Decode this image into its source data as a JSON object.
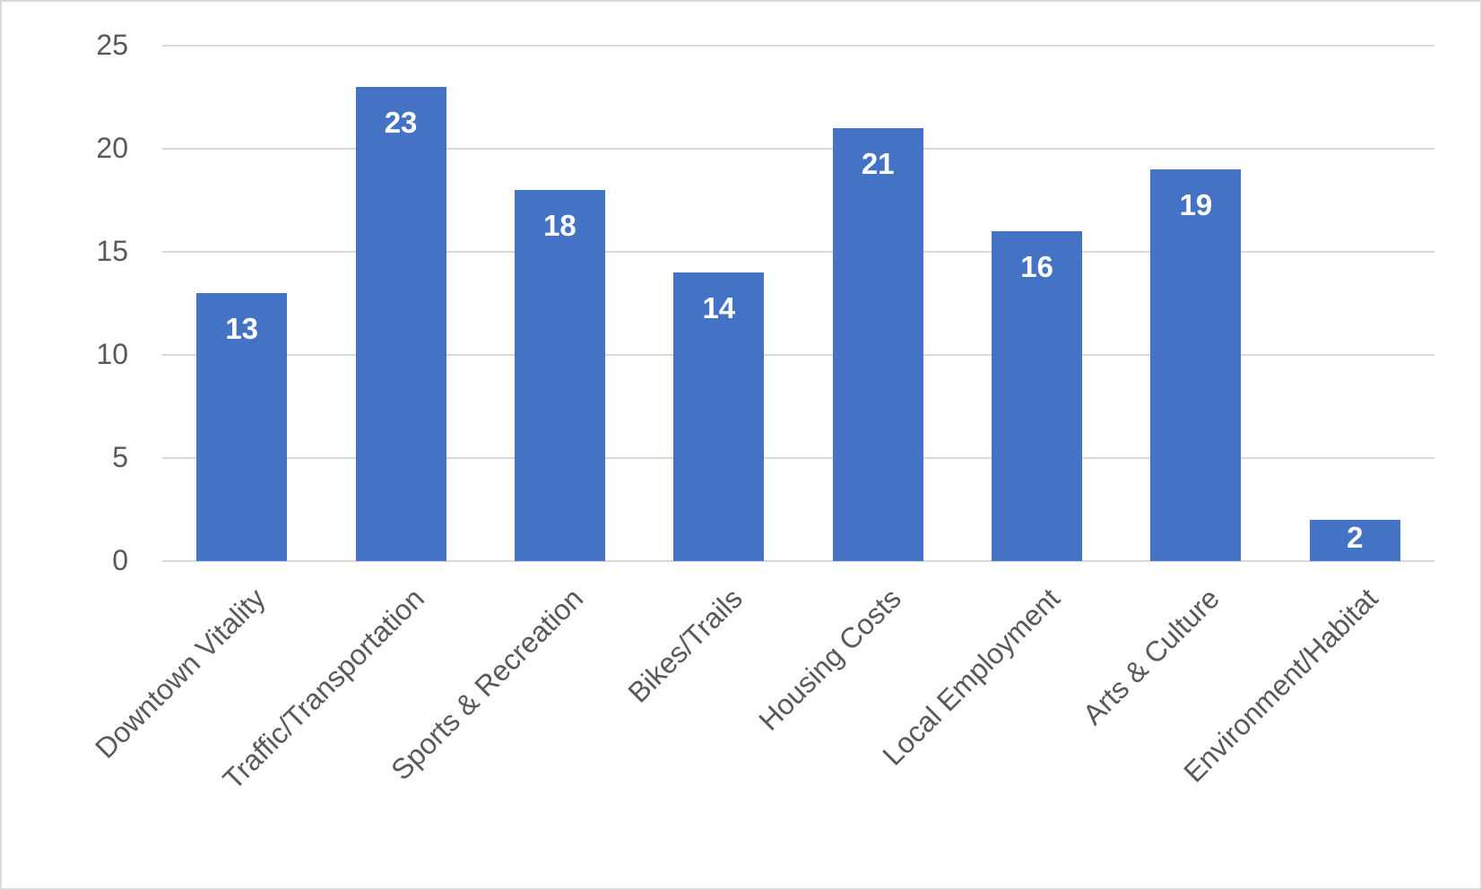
{
  "chart_data": {
    "type": "bar",
    "title": "",
    "xlabel": "",
    "ylabel": "",
    "categories": [
      "Downtown Vitality",
      "Traffic/Transportation",
      "Sports & Recreation",
      "Bikes/Trails",
      "Housing Costs",
      "Local Employment",
      "Arts & Culture",
      "Environment/Habitat"
    ],
    "values": [
      13,
      23,
      18,
      14,
      21,
      16,
      19,
      2
    ],
    "data_labels": [
      "13",
      "23",
      "18",
      "14",
      "21",
      "16",
      "19",
      "2"
    ],
    "ylim": [
      0,
      25
    ],
    "yticks": [
      "0",
      "5",
      "10",
      "15",
      "20",
      "25"
    ],
    "grid": true,
    "legend": null,
    "bar_color": "#4472C4",
    "data_label_color": "#FFFFFF",
    "gridline_color": "#D9D9D9",
    "axis_text_color": "#595959"
  }
}
